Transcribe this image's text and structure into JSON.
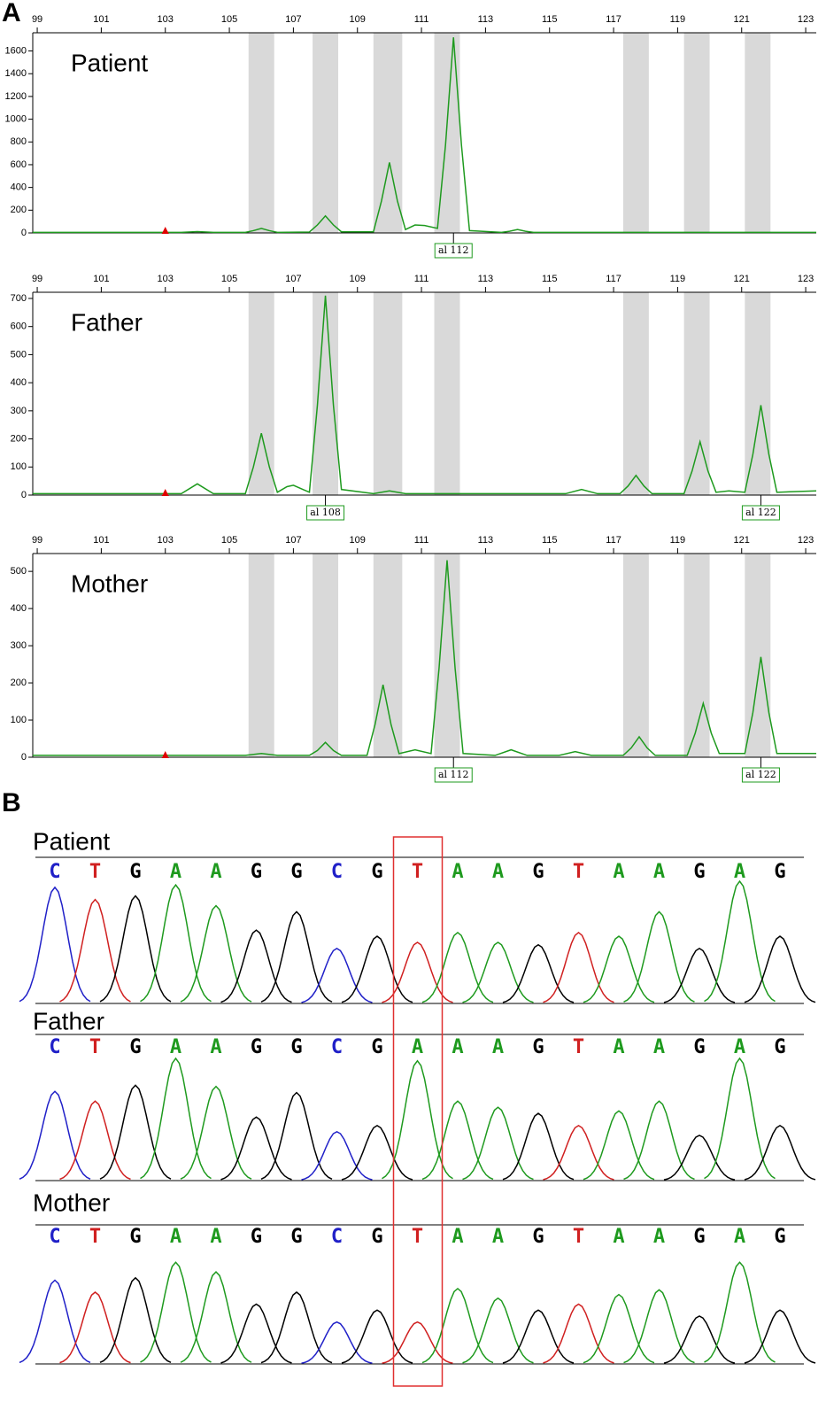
{
  "panel_labels": [
    "A",
    "B"
  ],
  "sequence_highlight_index": 9,
  "chart_data": [
    {
      "type": "line",
      "title": "Patient",
      "xlim": [
        98.86,
        123.33
      ],
      "xticks": [
        99,
        101,
        103,
        105,
        107,
        109,
        111,
        113,
        115,
        117,
        119,
        121,
        123
      ],
      "ylim": [
        0,
        1760
      ],
      "yticks": [
        0,
        200,
        400,
        600,
        800,
        1000,
        1200,
        1400,
        1600
      ],
      "marker_x": 103,
      "allele_bins": [
        [
          105.6,
          106.4
        ],
        [
          107.6,
          108.4
        ],
        [
          109.5,
          110.4
        ],
        [
          111.4,
          112.2
        ],
        [
          117.3,
          118.1
        ],
        [
          119.2,
          120.0
        ],
        [
          121.1,
          121.9
        ]
      ],
      "annotations": [
        {
          "x": 112,
          "text": "al 112"
        }
      ],
      "x": [
        98.86,
        103.5,
        104,
        104.5,
        105.5,
        105.75,
        106,
        106.25,
        106.5,
        107.5,
        107.75,
        108,
        108.25,
        108.5,
        109.5,
        109.75,
        110,
        110.25,
        110.5,
        110.8,
        111.1,
        111.5,
        111.75,
        112,
        112.25,
        112.5,
        113.5,
        113.75,
        114,
        114.25,
        114.5,
        123.33
      ],
      "series": [
        {
          "color": "#1e9a1e",
          "values": [
            5,
            5,
            12,
            5,
            5,
            20,
            40,
            20,
            5,
            8,
            70,
            150,
            70,
            10,
            10,
            280,
            620,
            280,
            30,
            70,
            65,
            40,
            770,
            1720,
            770,
            20,
            5,
            15,
            30,
            15,
            5,
            5
          ]
        }
      ]
    },
    {
      "type": "line",
      "title": "Father",
      "xlim": [
        98.86,
        123.33
      ],
      "xticks": [
        99,
        101,
        103,
        105,
        107,
        109,
        111,
        113,
        115,
        117,
        119,
        121,
        123
      ],
      "ylim": [
        0,
        722
      ],
      "yticks": [
        0,
        100,
        200,
        300,
        400,
        500,
        600,
        700
      ],
      "marker_x": 103,
      "allele_bins": [
        [
          105.6,
          106.4
        ],
        [
          107.6,
          108.4
        ],
        [
          109.5,
          110.4
        ],
        [
          111.4,
          112.2
        ],
        [
          117.3,
          118.1
        ],
        [
          119.2,
          120.0
        ],
        [
          121.1,
          121.9
        ]
      ],
      "annotations": [
        {
          "x": 108,
          "text": "al 108"
        },
        {
          "x": 121.6,
          "text": "al 122"
        }
      ],
      "x": [
        98.86,
        103.5,
        104,
        104.5,
        105.5,
        105.75,
        106,
        106.25,
        106.5,
        106.8,
        107,
        107.3,
        107.5,
        107.75,
        108,
        108.25,
        108.5,
        109.5,
        110,
        110.5,
        115.5,
        116,
        116.5,
        117.2,
        117.45,
        117.7,
        117.95,
        118.2,
        119.2,
        119.45,
        119.7,
        119.95,
        120.2,
        120.6,
        121.1,
        121.35,
        121.6,
        121.85,
        122.1,
        123.33
      ],
      "series": [
        {
          "color": "#1e9a1e",
          "values": [
            5,
            5,
            40,
            5,
            5,
            100,
            220,
            100,
            10,
            30,
            35,
            20,
            10,
            320,
            710,
            320,
            20,
            5,
            15,
            5,
            5,
            20,
            5,
            5,
            32,
            70,
            32,
            5,
            5,
            85,
            190,
            85,
            10,
            15,
            10,
            145,
            320,
            145,
            10,
            15
          ]
        }
      ]
    },
    {
      "type": "line",
      "title": "Mother",
      "xlim": [
        98.86,
        123.33
      ],
      "xticks": [
        99,
        101,
        103,
        105,
        107,
        109,
        111,
        113,
        115,
        117,
        119,
        121,
        123
      ],
      "ylim": [
        0,
        548
      ],
      "yticks": [
        0,
        100,
        200,
        300,
        400,
        500
      ],
      "marker_x": 103,
      "allele_bins": [
        [
          105.6,
          106.4
        ],
        [
          107.6,
          108.4
        ],
        [
          109.5,
          110.4
        ],
        [
          111.4,
          112.2
        ],
        [
          117.3,
          118.1
        ],
        [
          119.2,
          120.0
        ],
        [
          121.1,
          121.9
        ]
      ],
      "annotations": [
        {
          "x": 112,
          "text": "al 112"
        },
        {
          "x": 121.6,
          "text": "al 122"
        }
      ],
      "x": [
        98.86,
        105.5,
        106,
        106.5,
        107.5,
        107.75,
        108,
        108.25,
        108.5,
        109.3,
        109.55,
        109.8,
        110.05,
        110.3,
        110.8,
        111.3,
        111.55,
        111.8,
        112.05,
        112.3,
        113.3,
        113.8,
        114.3,
        115.3,
        115.8,
        116.3,
        117.3,
        117.55,
        117.8,
        118.05,
        118.3,
        119.3,
        119.55,
        119.8,
        120.05,
        120.3,
        121.1,
        121.35,
        121.6,
        121.85,
        122.1,
        123.33
      ],
      "series": [
        {
          "color": "#1e9a1e",
          "values": [
            5,
            5,
            10,
            5,
            5,
            18,
            40,
            18,
            5,
            5,
            88,
            195,
            88,
            10,
            20,
            10,
            240,
            530,
            240,
            10,
            5,
            20,
            5,
            5,
            15,
            5,
            5,
            25,
            55,
            25,
            5,
            5,
            65,
            145,
            65,
            10,
            10,
            120,
            270,
            120,
            10,
            10
          ]
        }
      ]
    },
    {
      "type": "chromatogram",
      "title": "Patient",
      "ylim": [
        0,
        100
      ],
      "base_colors": {
        "A": "#1e9a1e",
        "C": "#2020c8",
        "G": "#000000",
        "T": "#d02020"
      },
      "bases": [
        "C",
        "T",
        "G",
        "A",
        "A",
        "G",
        "G",
        "C",
        "G",
        "T",
        "A",
        "A",
        "G",
        "T",
        "A",
        "A",
        "G",
        "A",
        "G"
      ],
      "values": [
        95,
        85,
        88,
        97,
        80,
        60,
        75,
        45,
        55,
        50,
        58,
        50,
        48,
        58,
        55,
        75,
        45,
        100,
        55
      ]
    },
    {
      "type": "chromatogram",
      "title": "Father",
      "ylim": [
        0,
        100
      ],
      "base_colors": {
        "A": "#1e9a1e",
        "C": "#2020c8",
        "G": "#000000",
        "T": "#d02020"
      },
      "bases": [
        "C",
        "T",
        "G",
        "A",
        "A",
        "G",
        "G",
        "C",
        "G",
        "A",
        "A",
        "A",
        "G",
        "T",
        "A",
        "A",
        "G",
        "A",
        "G"
      ],
      "values": [
        73,
        65,
        78,
        100,
        77,
        52,
        72,
        40,
        45,
        98,
        65,
        60,
        55,
        45,
        57,
        65,
        37,
        100,
        45
      ]
    },
    {
      "type": "chromatogram",
      "title": "Mother",
      "ylim": [
        0,
        100
      ],
      "base_colors": {
        "A": "#1e9a1e",
        "C": "#2020c8",
        "G": "#000000",
        "T": "#d02020"
      },
      "bases": [
        "C",
        "T",
        "G",
        "A",
        "A",
        "G",
        "G",
        "C",
        "G",
        "T",
        "A",
        "A",
        "G",
        "T",
        "A",
        "A",
        "G",
        "A",
        "G"
      ],
      "values": [
        70,
        60,
        72,
        85,
        77,
        50,
        60,
        35,
        45,
        35,
        63,
        55,
        45,
        50,
        58,
        62,
        40,
        85,
        45
      ]
    }
  ]
}
